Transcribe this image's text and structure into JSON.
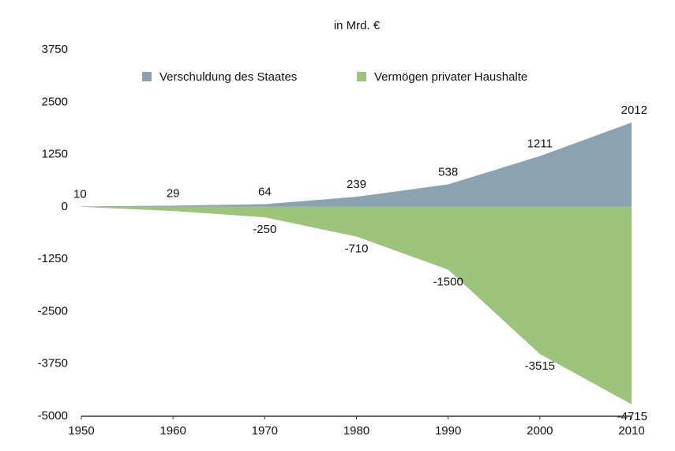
{
  "chart_data": {
    "type": "area",
    "title": "in Mrd. €",
    "x": [
      1950,
      1960,
      1970,
      1980,
      1990,
      2000,
      2010
    ],
    "xlim": [
      1950,
      2010
    ],
    "xticks": [
      1950,
      1960,
      1970,
      1980,
      1990,
      2000,
      2010
    ],
    "ylim": [
      -5000,
      3750
    ],
    "yticks": [
      -5000,
      -3750,
      -2500,
      -1250,
      0,
      1250,
      2500,
      3750
    ],
    "grid": false,
    "legend": "top",
    "series": [
      {
        "name": "Verschuldung des Staates",
        "color": "#8ba2b0",
        "values": [
          10,
          29,
          64,
          239,
          538,
          1211,
          2012
        ]
      },
      {
        "name": "Vermögen privater Haushalte",
        "color": "#9cc47b",
        "values": [
          0,
          -100,
          -250,
          -710,
          -1500,
          -3515,
          -4715
        ],
        "value_labels": [
          null,
          null,
          "-250",
          "-710",
          "-1500",
          "-3515",
          "-4715"
        ]
      }
    ]
  }
}
